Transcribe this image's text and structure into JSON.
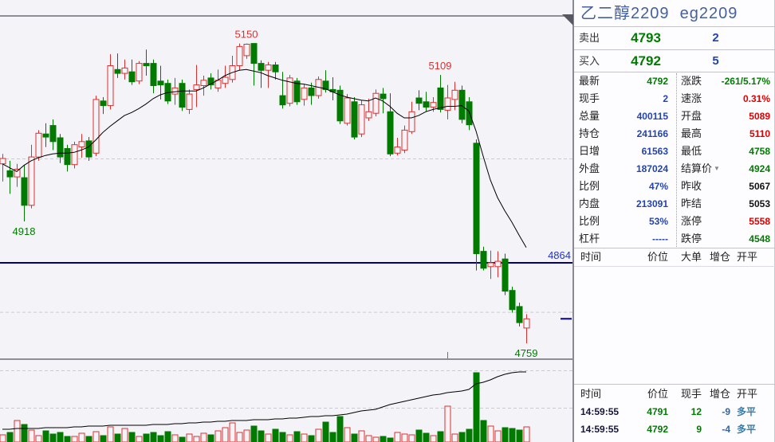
{
  "quote_panel": {
    "title": "乙二醇2209  eg2209",
    "ask": {
      "label": "卖出",
      "price": "4793",
      "qty": "2"
    },
    "bid": {
      "label": "买入",
      "price": "4792",
      "qty": "5"
    },
    "stats": [
      {
        "l1": "最新",
        "v1": "4792",
        "c1": "green",
        "l2": "涨跌",
        "v2": "-261/5.17%",
        "c2": "green",
        "dd": false
      },
      {
        "l1": "现手",
        "v1": "2",
        "c1": "blue",
        "l2": "速涨",
        "v2": "0.31%",
        "c2": "red",
        "dd": false
      },
      {
        "l1": "总量",
        "v1": "400115",
        "c1": "blue",
        "l2": "开盘",
        "v2": "5089",
        "c2": "red",
        "dd": false
      },
      {
        "l1": "持仓",
        "v1": "241166",
        "c1": "blue",
        "l2": "最高",
        "v2": "5110",
        "c2": "red",
        "dd": false
      },
      {
        "l1": "日增",
        "v1": "61563",
        "c1": "blue",
        "l2": "最低",
        "v2": "4758",
        "c2": "green",
        "dd": false
      },
      {
        "l1": "外盘",
        "v1": "187024",
        "c1": "blue",
        "l2": "结算价",
        "v2": "4924",
        "c2": "green",
        "dd": true
      },
      {
        "l1": "比例",
        "v1": "47%",
        "c1": "blue",
        "l2": "昨收",
        "v2": "5067",
        "c2": "black",
        "dd": false
      },
      {
        "l1": "内盘",
        "v1": "213091",
        "c1": "blue",
        "l2": "昨结",
        "v2": "5053",
        "c2": "black",
        "dd": false
      },
      {
        "l1": "比例",
        "v1": "53%",
        "c1": "blue",
        "l2": "涨停",
        "v2": "5558",
        "c2": "red",
        "dd": false
      },
      {
        "l1": "杠杆",
        "v1": "-----",
        "c1": "blue",
        "l2": "跌停",
        "v2": "4548",
        "c2": "green",
        "dd": false
      }
    ],
    "orderflow_header": [
      "时间",
      "价位",
      "大单",
      "增仓",
      "开平"
    ],
    "trades_header": [
      "时间",
      "价位",
      "现手",
      "增仓",
      "开平"
    ],
    "trades": [
      {
        "time": "14:59:55",
        "price": "4791",
        "vol": "12",
        "oi": "-9",
        "type": "多平"
      },
      {
        "time": "14:59:55",
        "price": "4792",
        "vol": "9",
        "oi": "-4",
        "type": "多平"
      }
    ],
    "icons": {
      "dropdown": "▼"
    }
  },
  "chart_data": {
    "type": "candlestick",
    "instrument": "乙二醇2209 eg2209",
    "y_axis": {
      "min": 4750,
      "max": 5160,
      "grid": "dashed"
    },
    "price_gridlines": [
      5000,
      4800
    ],
    "volume_gridlines_rel": [
      90,
      43
    ],
    "session_tick_candle": 62,
    "ref_price_line": {
      "price": 4864,
      "label": "4864",
      "color": "#000080"
    },
    "last_price_marker": {
      "price": 4791
    },
    "labels": [
      {
        "text": "5150",
        "candle": 34,
        "price": 5150,
        "pos": "above",
        "color": "#DC3030"
      },
      {
        "text": "5109",
        "candle": 61,
        "price": 5109,
        "pos": "above",
        "color": "#DC3030"
      },
      {
        "text": "4918",
        "candle": 3,
        "price": 4918,
        "pos": "below",
        "color": "#007C00"
      },
      {
        "text": "4759",
        "candle": 73,
        "price": 4759,
        "pos": "below",
        "color": "#007C00"
      }
    ],
    "colors": {
      "up": "#DC3030",
      "down": "#007B00",
      "ma": "#000000",
      "oi_line": "#000000",
      "bg": "#F4F4F8"
    },
    "candles": [
      [
        4993,
        5006,
        4970,
        5000
      ],
      [
        4984,
        4997,
        4954,
        4976
      ],
      [
        4976,
        4993,
        4963,
        4986
      ],
      [
        4975,
        4992,
        4918,
        4939
      ],
      [
        4939,
        5018,
        4935,
        5002
      ],
      [
        5002,
        5037,
        4997,
        5033
      ],
      [
        5032,
        5046,
        5015,
        5028
      ],
      [
        5043,
        5051,
        5011,
        5022
      ],
      [
        5027,
        5032,
        4994,
        5002
      ],
      [
        5013,
        5018,
        4983,
        4992
      ],
      [
        4992,
        5022,
        4987,
        5018
      ],
      [
        5015,
        5032,
        5001,
        5022
      ],
      [
        5023,
        5028,
        4997,
        5002
      ],
      [
        5007,
        5082,
        5003,
        5077
      ],
      [
        5075,
        5080,
        5058,
        5069
      ],
      [
        5069,
        5136,
        5064,
        5121
      ],
      [
        5116,
        5137,
        5105,
        5111
      ],
      [
        5111,
        5129,
        5103,
        5118
      ],
      [
        5113,
        5129,
        5096,
        5100
      ],
      [
        5101,
        5127,
        5097,
        5124
      ],
      [
        5124,
        5142,
        5108,
        5121
      ],
      [
        5124,
        5129,
        5085,
        5095
      ],
      [
        5101,
        5121,
        5077,
        5096
      ],
      [
        5098,
        5103,
        5071,
        5075
      ],
      [
        5084,
        5105,
        5070,
        5092
      ],
      [
        5098,
        5103,
        5062,
        5067
      ],
      [
        5064,
        5090,
        5058,
        5084
      ],
      [
        5090,
        5122,
        5067,
        5096
      ],
      [
        5095,
        5108,
        5082,
        5102
      ],
      [
        5105,
        5111,
        5090,
        5096
      ],
      [
        5092,
        5116,
        5087,
        5102
      ],
      [
        5098,
        5121,
        5092,
        5106
      ],
      [
        5103,
        5134,
        5099,
        5121
      ],
      [
        5121,
        5150,
        5115,
        5146
      ],
      [
        5134,
        5150,
        5130,
        5149
      ],
      [
        5150,
        5150,
        5095,
        5124
      ],
      [
        5124,
        5128,
        5092,
        5115
      ],
      [
        5115,
        5126,
        5092,
        5122
      ],
      [
        5122,
        5126,
        5103,
        5113
      ],
      [
        5082,
        5113,
        5065,
        5070
      ],
      [
        5072,
        5109,
        5068,
        5105
      ],
      [
        5101,
        5105,
        5070,
        5074
      ],
      [
        5077,
        5097,
        5069,
        5092
      ],
      [
        5092,
        5099,
        5070,
        5082
      ],
      [
        5082,
        5107,
        5078,
        5103
      ],
      [
        5101,
        5115,
        5086,
        5090
      ],
      [
        5090,
        5106,
        5076,
        5087
      ],
      [
        5089,
        5095,
        5045,
        5049
      ],
      [
        5046,
        5084,
        5043,
        5079
      ],
      [
        5074,
        5080,
        5025,
        5028
      ],
      [
        5032,
        5076,
        5028,
        5070
      ],
      [
        5053,
        5078,
        5049,
        5061
      ],
      [
        5059,
        5090,
        5055,
        5085
      ],
      [
        5084,
        5092,
        5059,
        5078
      ],
      [
        5061,
        5085,
        5003,
        5006
      ],
      [
        5007,
        5027,
        5004,
        5015
      ],
      [
        5011,
        5043,
        5007,
        5037
      ],
      [
        5035,
        5074,
        5032,
        5061
      ],
      [
        5079,
        5089,
        5063,
        5072
      ],
      [
        5074,
        5087,
        5061,
        5067
      ],
      [
        5067,
        5080,
        5061,
        5073
      ],
      [
        5092,
        5109,
        5060,
        5064
      ],
      [
        5063,
        5096,
        5051,
        5079
      ],
      [
        5077,
        5100,
        5063,
        5089
      ],
      [
        5089,
        5095,
        5046,
        5051
      ],
      [
        5074,
        5080,
        5037,
        5044
      ],
      [
        5020,
        5025,
        4854,
        4876
      ],
      [
        4879,
        4885,
        4854,
        4857
      ],
      [
        4859,
        4880,
        4843,
        4864
      ],
      [
        4859,
        4879,
        4845,
        4866
      ],
      [
        4869,
        4876,
        4822,
        4827
      ],
      [
        4828,
        4833,
        4799,
        4803
      ],
      [
        4807,
        4812,
        4781,
        4786
      ],
      [
        4779,
        4797,
        4759,
        4791
      ]
    ],
    "ma": [
      4993,
      4988,
      4983,
      4991,
      4997,
      5001,
      5004,
      5006,
      5007,
      5007,
      5008,
      5011,
      5015,
      5024,
      5034,
      5042,
      5049,
      5056,
      5060,
      5065,
      5071,
      5078,
      5083,
      5086,
      5087,
      5088,
      5088,
      5088,
      5092,
      5097,
      5102,
      5108,
      5112,
      5115,
      5116,
      5114,
      5112,
      5108,
      5105,
      5102,
      5100,
      5098,
      5097,
      5095,
      5093,
      5091,
      5087,
      5083,
      5080,
      5078,
      5076,
      5075,
      5079,
      5075,
      5068,
      5059,
      5053,
      5053,
      5056,
      5061,
      5064,
      5066,
      5068,
      5068,
      5069,
      5062,
      5036,
      5003,
      4972,
      4949,
      4932,
      4917,
      4900,
      4884
    ],
    "volume": [
      9,
      12,
      27,
      22,
      15,
      8,
      14,
      10,
      12,
      7,
      7,
      11,
      7,
      13,
      8,
      19,
      10,
      17,
      12,
      7,
      10,
      12,
      8,
      13,
      9,
      6,
      10,
      7,
      11,
      9,
      14,
      18,
      24,
      12,
      15,
      20,
      14,
      10,
      16,
      12,
      9,
      13,
      10,
      8,
      16,
      25,
      12,
      32,
      18,
      10,
      14,
      8,
      6,
      7,
      5,
      12,
      10,
      9,
      15,
      11,
      8,
      13,
      45,
      10,
      12,
      16,
      87,
      27,
      20,
      14,
      18,
      17,
      15,
      19
    ],
    "open_interest_line": [
      16,
      16,
      17,
      17,
      17,
      17,
      18,
      18,
      18,
      18,
      19,
      19,
      20,
      20,
      20,
      21,
      21,
      21,
      21,
      21,
      21,
      22,
      22,
      22,
      23,
      23,
      24,
      24,
      25,
      25,
      26,
      26,
      27,
      27,
      27,
      28,
      28,
      28,
      29,
      29,
      30,
      30,
      31,
      32,
      32,
      33,
      33,
      34,
      35,
      37,
      39,
      40,
      41,
      44,
      47,
      49,
      51,
      53,
      55,
      57,
      59,
      60,
      62,
      63,
      64,
      66,
      73,
      75,
      78,
      82,
      85,
      87,
      88,
      88
    ]
  }
}
